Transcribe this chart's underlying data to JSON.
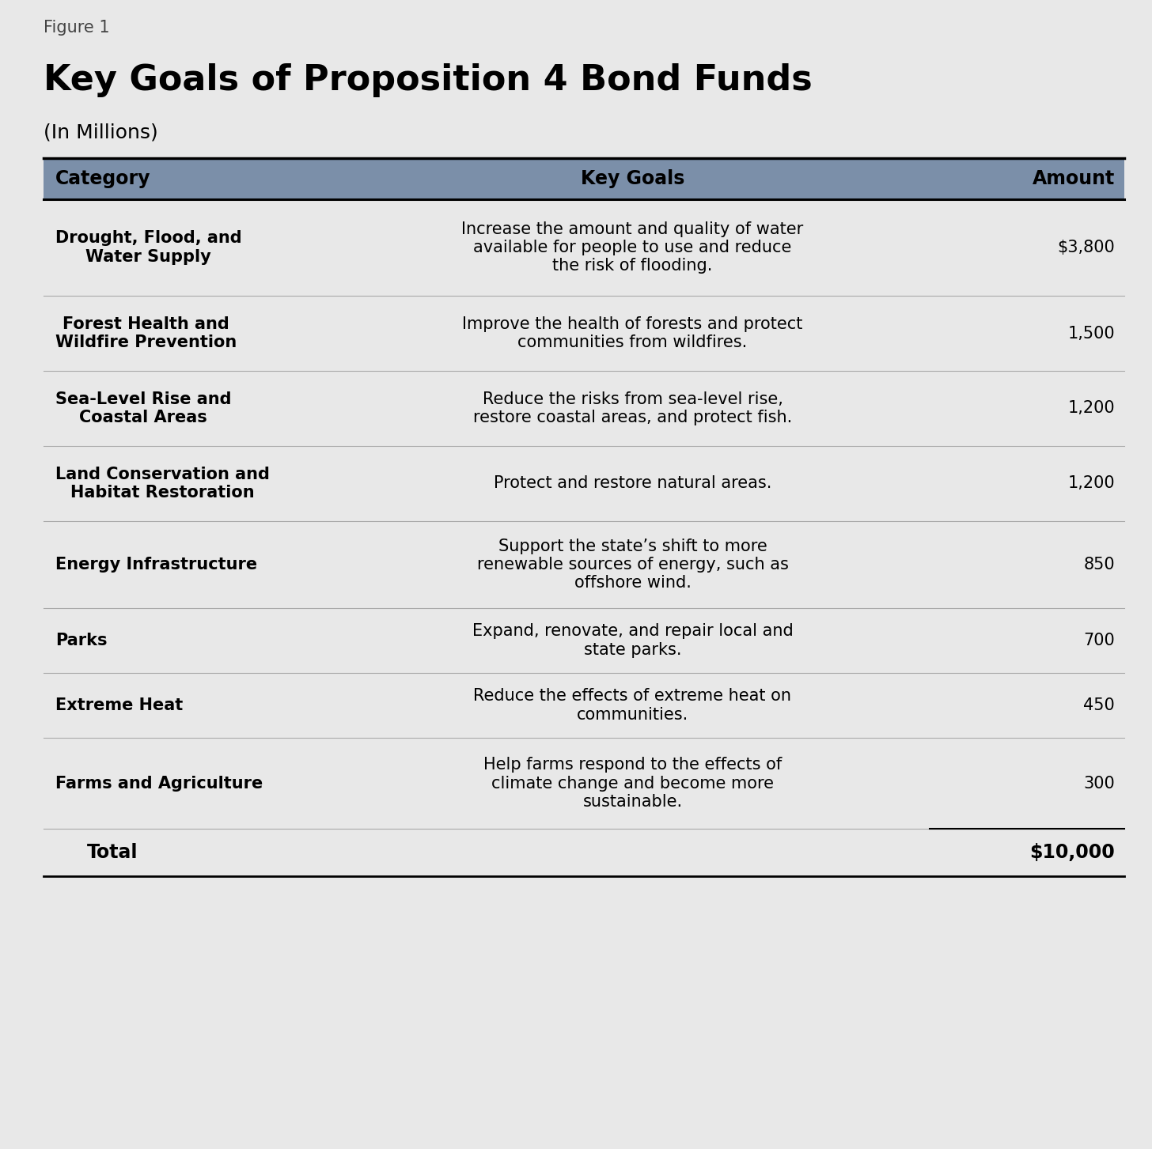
{
  "figure_label": "Figure 1",
  "title": "Key Goals of Proposition 4 Bond Funds",
  "subtitle": "(In Millions)",
  "background_color": "#e8e8e8",
  "header_bg_color": "#7b8fa9",
  "header_text_color": "#000000",
  "header_labels": [
    "Category",
    "Key Goals",
    "Amount"
  ],
  "rows": [
    {
      "category": "Drought, Flood, and\nWater Supply",
      "goals": "Increase the amount and quality of water\navailable for people to use and reduce\nthe risk of flooding.",
      "amount": "$3,800"
    },
    {
      "category": "Forest Health and\nWildfire Prevention",
      "goals": "Improve the health of forests and protect\ncommunities from wildfires.",
      "amount": "1,500"
    },
    {
      "category": "Sea-Level Rise and\nCoastal Areas",
      "goals": "Reduce the risks from sea-level rise,\nrestore coastal areas, and protect fish.",
      "amount": "1,200"
    },
    {
      "category": "Land Conservation and\nHabitat Restoration",
      "goals": "Protect and restore natural areas.",
      "amount": "1,200"
    },
    {
      "category": "Energy Infrastructure",
      "goals": "Support the state’s shift to more\nrenewable sources of energy, such as\noffshore wind.",
      "amount": "850"
    },
    {
      "category": "Parks",
      "goals": "Expand, renovate, and repair local and\nstate parks.",
      "amount": "700"
    },
    {
      "category": "Extreme Heat",
      "goals": "Reduce the effects of extreme heat on\ncommunities.",
      "amount": "450"
    },
    {
      "category": "Farms and Agriculture",
      "goals": "Help farms respond to the effects of\nclimate change and become more\nsustainable.",
      "amount": "300"
    }
  ],
  "total_label": "Total",
  "total_amount": "$10,000",
  "figure_label_fontsize": 15,
  "title_fontsize": 32,
  "subtitle_fontsize": 18,
  "header_fontsize": 17,
  "body_fontsize": 15,
  "total_fontsize": 17
}
